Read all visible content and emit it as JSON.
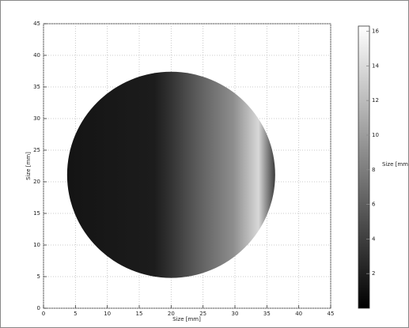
{
  "chart_data": {
    "type": "image",
    "xlabel": "Size [mm]",
    "ylabel": "Size [mm]",
    "xlim": [
      0,
      45
    ],
    "xticks": [
      0,
      5,
      10,
      15,
      20,
      25,
      30,
      35,
      40,
      45
    ],
    "ylim": [
      0,
      45
    ],
    "yticks": [
      0,
      5,
      10,
      15,
      20,
      25,
      30,
      35,
      40,
      45
    ],
    "grid": true,
    "circle": {
      "cx": 20,
      "cy": 21.1,
      "r": 16.3
    },
    "colorbar": {
      "label": "Size [mm",
      "clim": [
        0,
        16.3
      ],
      "ticks": [
        2,
        4,
        6,
        8,
        10,
        12,
        14,
        16
      ]
    }
  }
}
